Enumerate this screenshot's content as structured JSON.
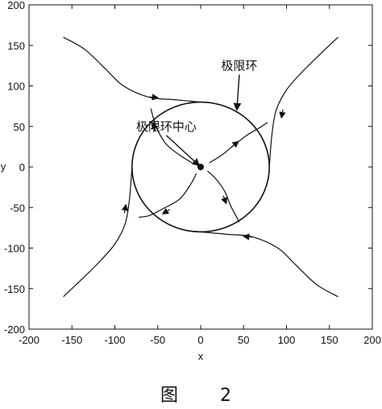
{
  "chart_data": {
    "type": "line",
    "title": "",
    "xlabel": "x",
    "ylabel": "y",
    "xlim": [
      -200,
      200
    ],
    "ylim": [
      -200,
      200
    ],
    "xticks": [
      -200,
      -150,
      -100,
      -50,
      0,
      50,
      100,
      150,
      200
    ],
    "yticks": [
      200,
      150,
      100,
      50,
      0,
      -50,
      -100,
      -150,
      -200
    ],
    "grid": false,
    "limit_cycle": {
      "center": [
        0,
        0
      ],
      "radius": 80
    },
    "center_point": [
      0,
      0
    ],
    "outer_trajectories": [
      {
        "points": [
          [
            -160,
            160
          ],
          [
            -135,
            145
          ],
          [
            -110,
            120
          ],
          [
            -90,
            100
          ],
          [
            -60,
            86
          ],
          [
            -30,
            83
          ],
          [
            0,
            80
          ]
        ],
        "arrow_at": [
          -55,
          86
        ]
      },
      {
        "points": [
          [
            160,
            160
          ],
          [
            140,
            140
          ],
          [
            118,
            117
          ],
          [
            100,
            95
          ],
          [
            88,
            70
          ],
          [
            83,
            40
          ],
          [
            80,
            0
          ]
        ],
        "arrow_at": [
          95,
          66
        ]
      },
      {
        "points": [
          [
            160,
            -160
          ],
          [
            135,
            -145
          ],
          [
            110,
            -120
          ],
          [
            90,
            -100
          ],
          [
            60,
            -86
          ],
          [
            30,
            -83
          ],
          [
            0,
            -80
          ]
        ],
        "arrow_at": [
          55,
          -86
        ]
      },
      {
        "points": [
          [
            -160,
            -160
          ],
          [
            -140,
            -140
          ],
          [
            -118,
            -117
          ],
          [
            -100,
            -95
          ],
          [
            -88,
            -70
          ],
          [
            -83,
            -40
          ],
          [
            -80,
            0
          ]
        ],
        "arrow_at": [
          -88,
          -52
        ]
      }
    ],
    "inner_trajectories": [
      {
        "points": [
          [
            -10,
            5
          ],
          [
            -25,
            15
          ],
          [
            -40,
            28
          ],
          [
            -50,
            45
          ],
          [
            -55,
            60
          ],
          [
            -58,
            72
          ]
        ],
        "arrow_at": [
          -54,
          49
        ]
      },
      {
        "points": [
          [
            -5,
            -8
          ],
          [
            -12,
            -22
          ],
          [
            -25,
            -40
          ],
          [
            -45,
            -52
          ],
          [
            -60,
            -60
          ],
          [
            -72,
            -62
          ]
        ],
        "arrow_at": [
          -40,
          -55
        ]
      },
      {
        "points": [
          [
            8,
            -5
          ],
          [
            18,
            -15
          ],
          [
            28,
            -30
          ],
          [
            35,
            -48
          ],
          [
            40,
            -58
          ],
          [
            45,
            -68
          ]
        ],
        "arrow_at": [
          28,
          -40
        ]
      },
      {
        "points": [
          [
            10,
            5
          ],
          [
            25,
            15
          ],
          [
            40,
            28
          ],
          [
            55,
            40
          ],
          [
            68,
            48
          ],
          [
            78,
            55
          ]
        ],
        "arrow_at": [
          40,
          28
        ]
      }
    ],
    "annotations": [
      {
        "text": "极限环",
        "x": 45,
        "y": 120,
        "points_to": [
          42,
          68
        ]
      },
      {
        "text": "极限环中心",
        "x": -40,
        "y": 45,
        "points_to": [
          0,
          0
        ]
      }
    ]
  },
  "caption": {
    "figure": "图",
    "number": "2"
  }
}
